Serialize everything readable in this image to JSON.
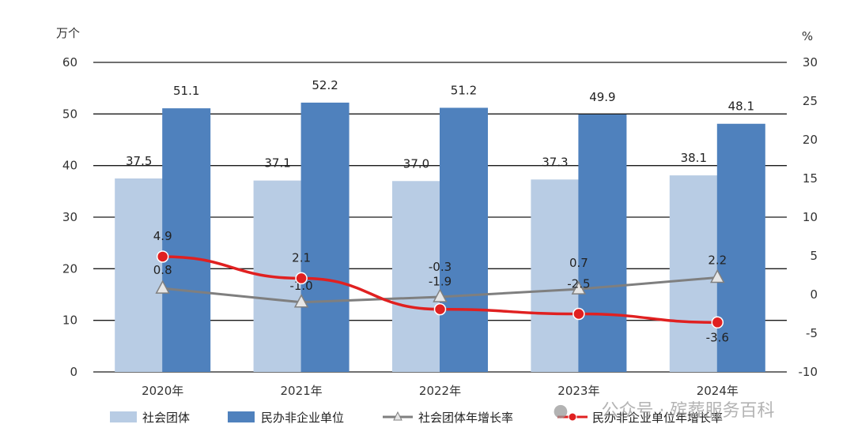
{
  "chart_data": {
    "type": "bar",
    "categories": [
      "2020年",
      "2021年",
      "2022年",
      "2023年",
      "2024年"
    ],
    "left_axis": {
      "unit": "万个",
      "ylim": [
        0,
        60
      ],
      "ticks": [
        "0",
        "10",
        "20",
        "30",
        "40",
        "50",
        "60"
      ]
    },
    "right_axis": {
      "unit": "%",
      "ylim": [
        -10,
        30
      ],
      "ticks": [
        "-10",
        "-5",
        "0",
        "5",
        "10",
        "15",
        "20",
        "25",
        "30"
      ]
    },
    "series": [
      {
        "name": "社会团体",
        "type": "bar",
        "axis": "left",
        "color": "#b8cce4",
        "values": [
          37.5,
          37.1,
          37.0,
          37.3,
          38.1
        ],
        "labels": [
          "37.5",
          "37.1",
          "37.0",
          "37.3",
          "38.1"
        ]
      },
      {
        "name": "民办非企业单位",
        "type": "bar",
        "axis": "left",
        "color": "#4f81bd",
        "values": [
          51.1,
          52.2,
          51.2,
          49.9,
          48.1
        ],
        "labels": [
          "51.1",
          "52.2",
          "51.2",
          "49.9",
          "48.1"
        ]
      },
      {
        "name": "社会团体年增长率",
        "type": "line",
        "axis": "right",
        "color": "#7f7f7f",
        "marker": "triangle",
        "values": [
          0.8,
          -1.0,
          -0.3,
          0.7,
          2.2
        ],
        "labels": [
          "0.8",
          "-1.0",
          "-0.3",
          "0.7",
          "2.2"
        ]
      },
      {
        "name": "民办非企业单位年增长率",
        "type": "line",
        "axis": "right",
        "color": "#e02020",
        "marker": "circle",
        "values": [
          4.9,
          2.1,
          -1.9,
          -2.5,
          -3.6
        ],
        "labels": [
          "4.9",
          "2.1",
          "-1.9",
          "-2.5",
          "-3.6"
        ]
      }
    ],
    "grid": true,
    "legend": "bottom"
  },
  "watermark": "公众号 · 殡葬服务百科"
}
